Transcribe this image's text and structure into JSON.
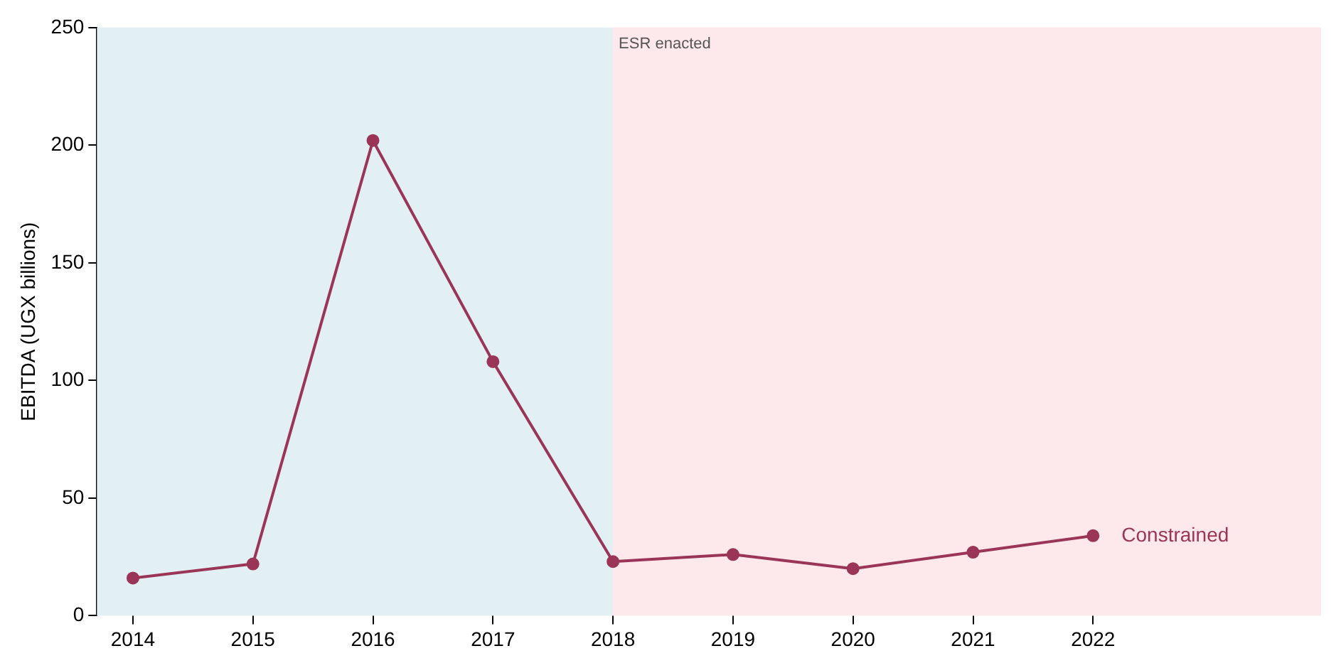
{
  "chart_data": {
    "type": "line",
    "ylabel": "EBITDA (UGX billions)",
    "x": [
      2014,
      2015,
      2016,
      2017,
      2018,
      2019,
      2020,
      2021,
      2022
    ],
    "series": [
      {
        "name": "Constrained",
        "color": "#9b3558",
        "values": [
          16,
          22,
          202,
          108,
          23,
          26,
          20,
          27,
          34
        ]
      }
    ],
    "xlim": [
      2013.7,
      2023.9
    ],
    "xticks": [
      2014,
      2015,
      2016,
      2017,
      2018,
      2019,
      2020,
      2021,
      2022
    ],
    "ylim": [
      0,
      250
    ],
    "yticks": [
      0,
      50,
      100,
      150,
      200,
      250
    ],
    "bands": [
      {
        "axis": "x",
        "from": 2013.7,
        "to": 2018,
        "color": "#e2f0f3"
      },
      {
        "axis": "x",
        "from": 2018,
        "to": 2023.9,
        "color": "#fde8eb",
        "label": "ESR enacted"
      }
    ],
    "grid": false,
    "legend": false,
    "marker": "circle",
    "line_style": "solid"
  }
}
